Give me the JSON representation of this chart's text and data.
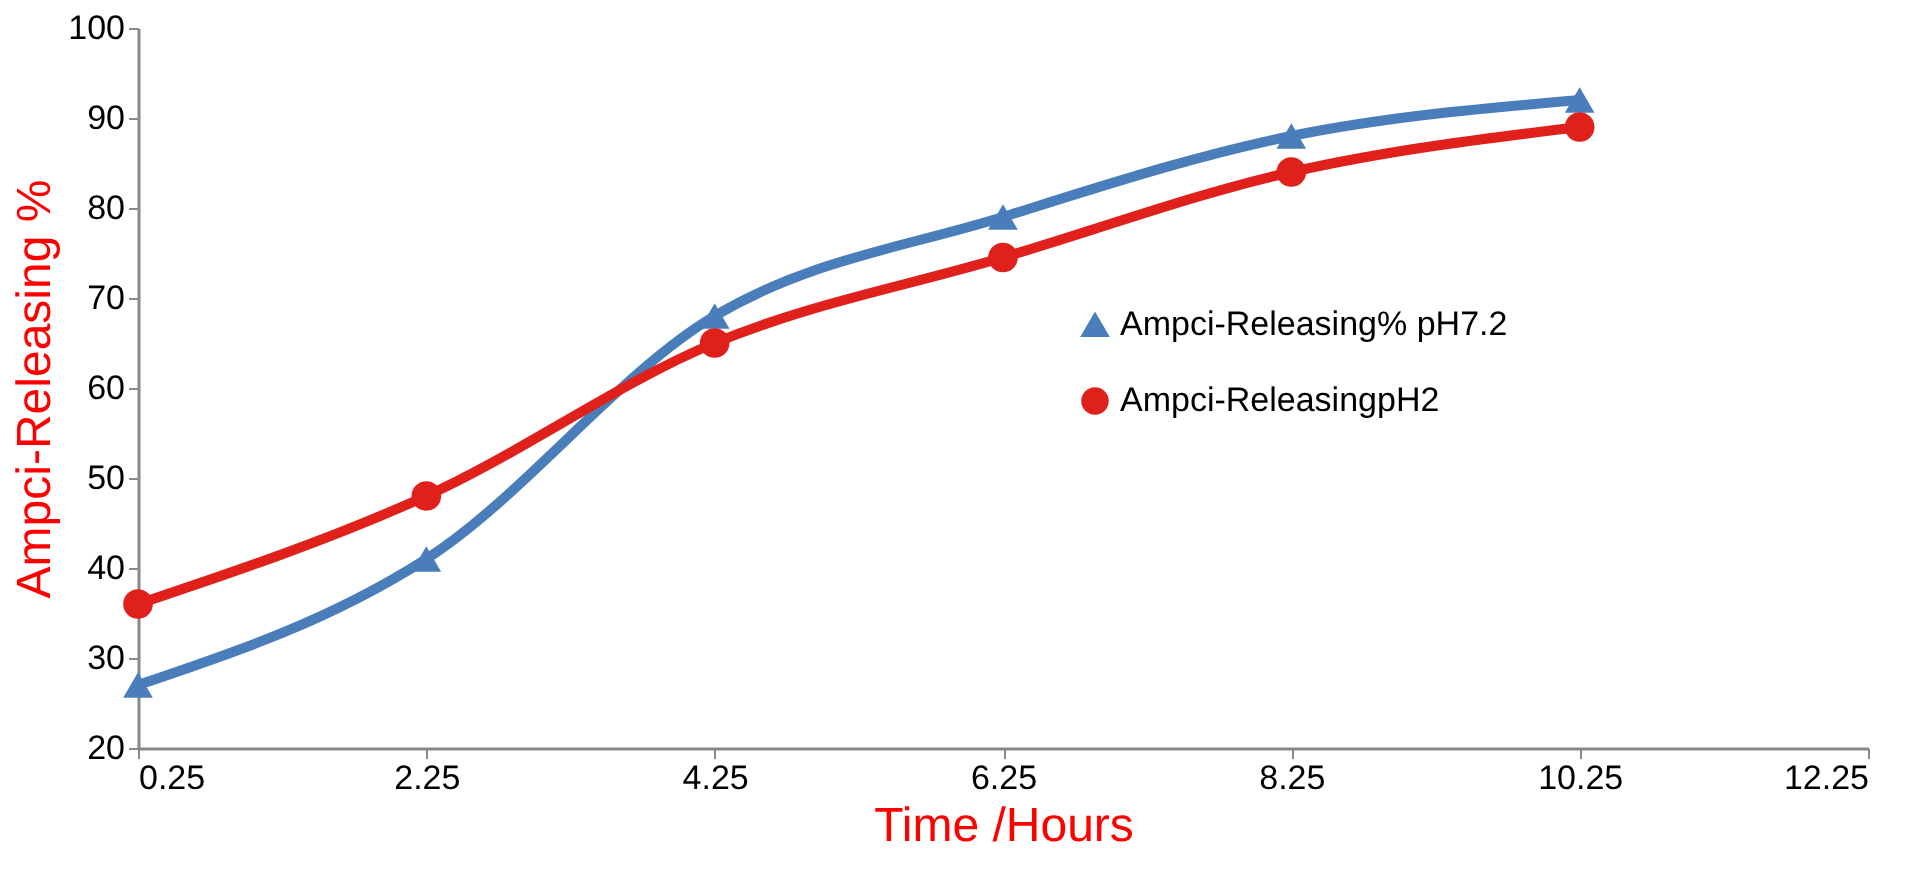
{
  "chart_data": {
    "type": "line",
    "xlabel": "Time /Hours",
    "ylabel": "Ampci-Releasing %",
    "x": [
      0.25,
      2.25,
      4.25,
      6.25,
      8.25,
      10.25
    ],
    "xlim": [
      0.25,
      12.25
    ],
    "xticks": [
      0.25,
      2.25,
      4.25,
      6.25,
      8.25,
      10.25,
      12.25
    ],
    "ylim": [
      20,
      100
    ],
    "yticks": [
      20,
      30,
      40,
      50,
      60,
      70,
      80,
      90,
      100
    ],
    "grid": false,
    "legend": "right",
    "series": [
      {
        "name": "Ampci-Releasing% pH7.2",
        "color": "#4a7ebb",
        "marker": "triangle",
        "values": [
          27,
          41,
          68,
          79,
          88,
          92
        ]
      },
      {
        "name": "Ampci-ReleasingpH2",
        "color": "#e0201b",
        "marker": "circle",
        "values": [
          36,
          48,
          65,
          74.5,
          84,
          89
        ]
      }
    ]
  }
}
